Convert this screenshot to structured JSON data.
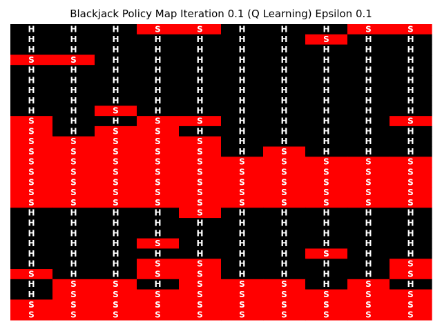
{
  "chart_data": {
    "type": "heatmap",
    "title": "Blackjack Policy Map Iteration 0.1 (Q Learning) Epsilon 0.1",
    "xlabel": "",
    "ylabel": "",
    "grid": false,
    "colors": {
      "H": "#000000",
      "S": "#ff0000",
      "text": "#ffffff"
    },
    "rows": [
      [
        "H",
        "H",
        "H",
        "S",
        "S",
        "H",
        "H",
        "H",
        "S",
        "S"
      ],
      [
        "H",
        "H",
        "H",
        "H",
        "H",
        "H",
        "H",
        "S",
        "H",
        "H"
      ],
      [
        "H",
        "H",
        "H",
        "H",
        "H",
        "H",
        "H",
        "H",
        "H",
        "H"
      ],
      [
        "S",
        "S",
        "H",
        "H",
        "H",
        "H",
        "H",
        "H",
        "H",
        "H"
      ],
      [
        "H",
        "H",
        "H",
        "H",
        "H",
        "H",
        "H",
        "H",
        "H",
        "H"
      ],
      [
        "H",
        "H",
        "H",
        "H",
        "H",
        "H",
        "H",
        "H",
        "H",
        "H"
      ],
      [
        "H",
        "H",
        "H",
        "H",
        "H",
        "H",
        "H",
        "H",
        "H",
        "H"
      ],
      [
        "H",
        "H",
        "H",
        "H",
        "H",
        "H",
        "H",
        "H",
        "H",
        "H"
      ],
      [
        "H",
        "H",
        "S",
        "H",
        "H",
        "H",
        "H",
        "H",
        "H",
        "H"
      ],
      [
        "S",
        "H",
        "H",
        "S",
        "S",
        "H",
        "H",
        "H",
        "H",
        "S"
      ],
      [
        "S",
        "H",
        "S",
        "S",
        "H",
        "H",
        "H",
        "H",
        "H",
        "H"
      ],
      [
        "S",
        "S",
        "S",
        "S",
        "S",
        "H",
        "H",
        "H",
        "H",
        "H"
      ],
      [
        "S",
        "S",
        "S",
        "S",
        "S",
        "H",
        "S",
        "H",
        "H",
        "H"
      ],
      [
        "S",
        "S",
        "S",
        "S",
        "S",
        "S",
        "S",
        "S",
        "S",
        "S"
      ],
      [
        "S",
        "S",
        "S",
        "S",
        "S",
        "S",
        "S",
        "S",
        "S",
        "S"
      ],
      [
        "S",
        "S",
        "S",
        "S",
        "S",
        "S",
        "S",
        "S",
        "S",
        "S"
      ],
      [
        "S",
        "S",
        "S",
        "S",
        "S",
        "S",
        "S",
        "S",
        "S",
        "S"
      ],
      [
        "S",
        "S",
        "S",
        "S",
        "S",
        "S",
        "S",
        "S",
        "S",
        "S"
      ],
      [
        "H",
        "H",
        "H",
        "H",
        "S",
        "H",
        "H",
        "H",
        "H",
        "H"
      ],
      [
        "H",
        "H",
        "H",
        "H",
        "H",
        "H",
        "H",
        "H",
        "H",
        "H"
      ],
      [
        "H",
        "H",
        "H",
        "H",
        "H",
        "H",
        "H",
        "H",
        "H",
        "H"
      ],
      [
        "H",
        "H",
        "H",
        "S",
        "H",
        "H",
        "H",
        "H",
        "H",
        "H"
      ],
      [
        "H",
        "H",
        "H",
        "H",
        "H",
        "H",
        "H",
        "S",
        "H",
        "H"
      ],
      [
        "H",
        "H",
        "H",
        "S",
        "S",
        "H",
        "H",
        "H",
        "H",
        "S"
      ],
      [
        "S",
        "H",
        "H",
        "S",
        "S",
        "H",
        "H",
        "H",
        "H",
        "S"
      ],
      [
        "H",
        "S",
        "S",
        "H",
        "S",
        "S",
        "S",
        "H",
        "S",
        "H"
      ],
      [
        "H",
        "S",
        "S",
        "S",
        "S",
        "S",
        "S",
        "S",
        "S",
        "S"
      ],
      [
        "S",
        "S",
        "S",
        "S",
        "S",
        "S",
        "S",
        "S",
        "S",
        "S"
      ],
      [
        "S",
        "S",
        "S",
        "S",
        "S",
        "S",
        "S",
        "S",
        "S",
        "S"
      ]
    ]
  }
}
